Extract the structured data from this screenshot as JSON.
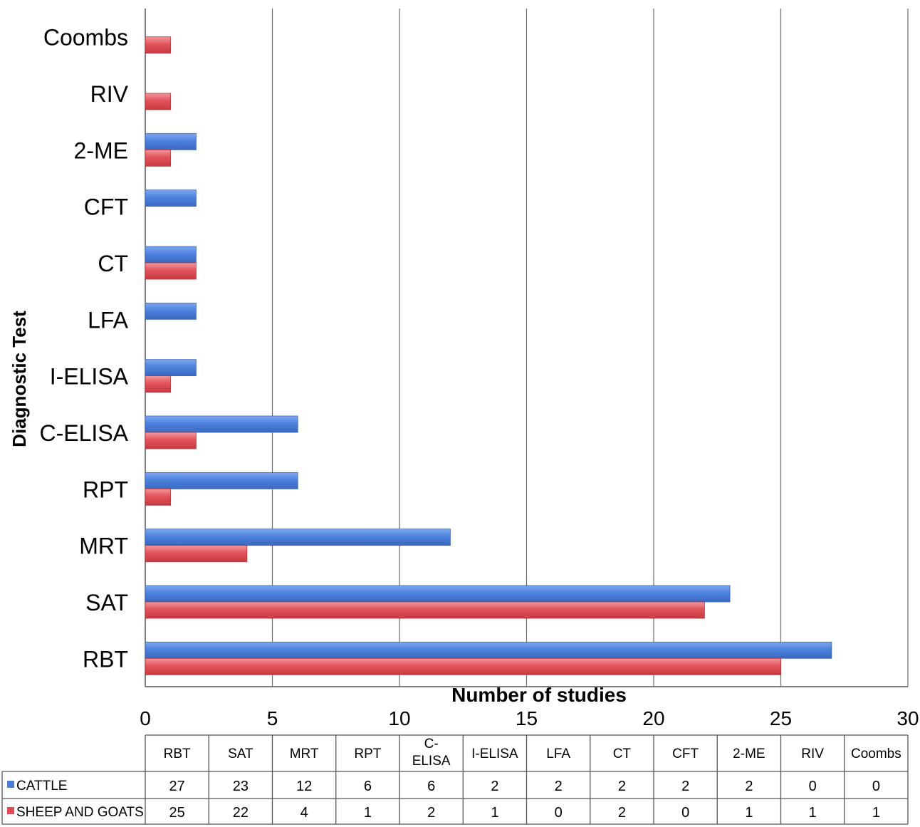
{
  "chart_data": {
    "type": "bar",
    "orientation": "horizontal",
    "xlabel": "Number of studies",
    "ylabel": "Diagnostic Test",
    "xlim": [
      0,
      30
    ],
    "xticks": [
      0,
      5,
      10,
      15,
      20,
      25,
      30
    ],
    "grid": "vertical",
    "categories": [
      "RBT",
      "SAT",
      "MRT",
      "RPT",
      "C-ELISA",
      "I-ELISA",
      "LFA",
      "CT",
      "CFT",
      "2-ME",
      "RIV",
      "Coombs"
    ],
    "table_headers": [
      "RBT",
      "SAT",
      "MRT",
      "RPT",
      "C-\nELISA",
      "I-ELISA",
      "LFA",
      "CT",
      "CFT",
      "2-ME",
      "RIV",
      "Coombs"
    ],
    "series": [
      {
        "name": "CATTLE",
        "color": "#4a7fd8",
        "values": [
          27,
          23,
          12,
          6,
          6,
          2,
          2,
          2,
          2,
          2,
          0,
          0
        ]
      },
      {
        "name": "SHEEP AND GOATS",
        "color": "#e04a52",
        "values": [
          25,
          22,
          4,
          1,
          2,
          1,
          0,
          2,
          0,
          1,
          1,
          1
        ]
      }
    ],
    "legend": "data-table-below"
  }
}
